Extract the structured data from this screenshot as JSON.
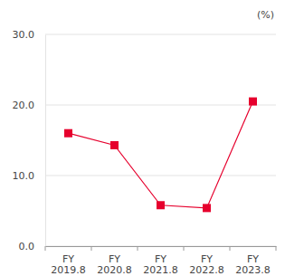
{
  "chart_data": {
    "type": "line",
    "ylabel": "(%)",
    "categories": [
      "FY\n2019.8",
      "FY\n2020.8",
      "FY\n2021.8",
      "FY\n2022.8",
      "FY\n2023.8"
    ],
    "values": [
      16.0,
      14.3,
      5.8,
      5.4,
      20.5
    ],
    "color": "#e6002d",
    "marker": "square",
    "ylim": [
      0,
      30
    ],
    "yticks": [
      {
        "value": 0,
        "label": "0.0"
      },
      {
        "value": 10,
        "label": "10.0"
      },
      {
        "value": 20,
        "label": "20.0"
      },
      {
        "value": 30,
        "label": "30.0"
      }
    ],
    "grid": true
  }
}
